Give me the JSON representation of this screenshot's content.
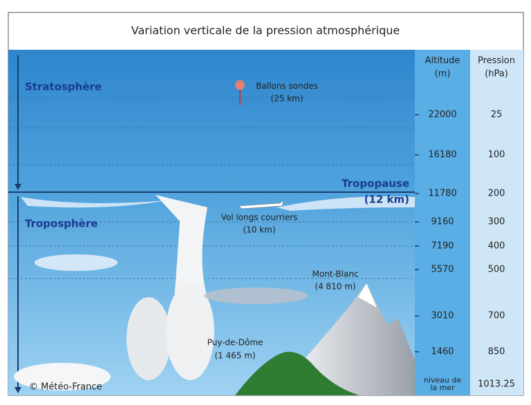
{
  "title": "Variation verticale de la pression atmosphérique",
  "layers": {
    "stratosphere": "Stratosphère",
    "troposphere": "Troposphère",
    "tropopause": "Tropopause",
    "tropopause_height": "(12 km)"
  },
  "annotations": {
    "balloons": {
      "label": "Ballons sondes",
      "height": "(25 km)"
    },
    "flights": {
      "label": "Vol longs courriers",
      "height": "(10 km)"
    },
    "mont_blanc": {
      "label": "Mont-Blanc",
      "height": "(4 810 m)"
    },
    "puy_de_dome": {
      "label": "Puy-de-Dôme",
      "height": "(1 465 m)"
    }
  },
  "credit": "© Météo-France",
  "table": {
    "headers": {
      "altitude": [
        "Altitude",
        "(m)"
      ],
      "pressure": [
        "Pression",
        "(hPa)"
      ]
    },
    "rows": [
      {
        "altitude": [
          "22000"
        ],
        "pressure": "25"
      },
      {
        "altitude": [
          "16180"
        ],
        "pressure": "100"
      },
      {
        "altitude": [
          "11780"
        ],
        "pressure": "200"
      },
      {
        "altitude": [
          "9160"
        ],
        "pressure": "300"
      },
      {
        "altitude": [
          "7190"
        ],
        "pressure": "400"
      },
      {
        "altitude": [
          "5570"
        ],
        "pressure": "500"
      },
      {
        "altitude": [
          "3010"
        ],
        "pressure": "700"
      },
      {
        "altitude": [
          "1460"
        ],
        "pressure": "850"
      },
      {
        "altitude": [
          "niveau de",
          "la mer"
        ],
        "pressure": "1013.25"
      }
    ]
  }
}
